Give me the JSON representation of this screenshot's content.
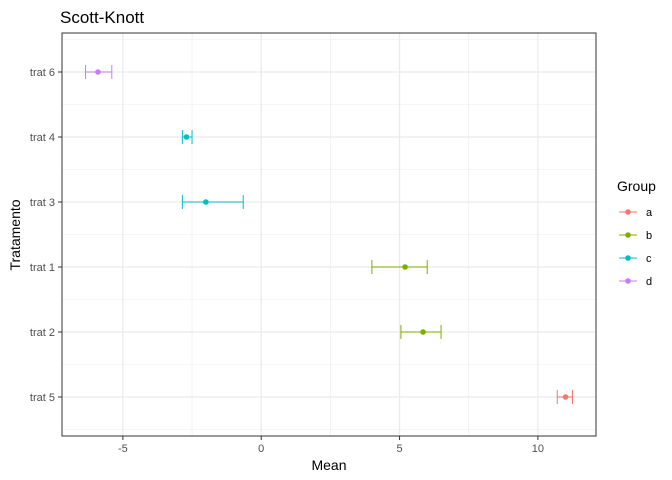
{
  "chart_data": {
    "type": "scatter",
    "title": "Scott-Knott",
    "xlabel": "Mean",
    "ylabel": "Tratamento",
    "xlim": [
      -7.2,
      12.1
    ],
    "xticks": [
      -5,
      0,
      5,
      10
    ],
    "xtick_labels": [
      "-5",
      "0",
      "5",
      "10"
    ],
    "grid": true,
    "categories": [
      "trat 5",
      "trat 2",
      "trat 1",
      "trat 3",
      "trat 4",
      "trat 6"
    ],
    "points": [
      {
        "category": "trat 6",
        "mean": -5.9,
        "low": -6.35,
        "high": -5.4,
        "group": "d"
      },
      {
        "category": "trat 4",
        "mean": -2.7,
        "low": -2.85,
        "high": -2.5,
        "group": "c"
      },
      {
        "category": "trat 3",
        "mean": -2.0,
        "low": -2.85,
        "high": -0.65,
        "group": "c"
      },
      {
        "category": "trat 1",
        "mean": 5.2,
        "low": 4.0,
        "high": 6.0,
        "group": "b"
      },
      {
        "category": "trat 2",
        "mean": 5.85,
        "low": 5.05,
        "high": 6.5,
        "group": "b"
      },
      {
        "category": "trat 5",
        "mean": 11.0,
        "low": 10.7,
        "high": 11.25,
        "group": "a"
      }
    ],
    "legend": {
      "title": "Group",
      "placement": "right",
      "items": [
        {
          "label": "a",
          "color": "#F8766D"
        },
        {
          "label": "b",
          "color": "#7CAE00"
        },
        {
          "label": "c",
          "color": "#00BFC4"
        },
        {
          "label": "d",
          "color": "#C77CFF"
        }
      ]
    },
    "colors": {
      "panel_border": "#333333",
      "grid": "#ebebeb"
    }
  }
}
